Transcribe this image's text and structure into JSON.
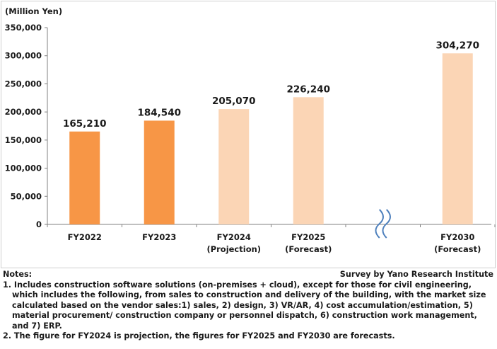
{
  "chart_data": {
    "type": "bar",
    "unit_label": "(Million Yen)",
    "categories": [
      [
        "FY2022"
      ],
      [
        "FY2023"
      ],
      [
        "FY2024",
        "(Projection)"
      ],
      [
        "FY2025",
        "(Forecast)"
      ],
      [
        "FY2030",
        "(Forecast)"
      ]
    ],
    "values": [
      165210,
      184540,
      205070,
      226240,
      304270
    ],
    "value_labels": [
      "165,210",
      "184,540",
      "205,070",
      "226,240",
      "304,270"
    ],
    "bar_colors": [
      "#f79646",
      "#f79646",
      "#fbd5b5",
      "#fbd5b5",
      "#fbd5b5"
    ],
    "ylim": [
      0,
      350000
    ],
    "yticks": [
      "0",
      "50,000",
      "100,000",
      "150,000",
      "200,000",
      "250,000",
      "300,000",
      "350,000"
    ],
    "axis_break_between": [
      3,
      4
    ],
    "break_color": "#4f81bd",
    "grid": false
  },
  "notes": {
    "title": "Notes:",
    "source": "Survey by Yano Research Institute",
    "items": [
      "1. Includes construction software solutions (on-premises + cloud), except for those for civil engineering, which includes the following, from sales to construction and delivery of the building, with the market size calculated based on the vendor sales:1) sales, 2) design, 3) VR/AR, 4) cost accumulation/estimation, 5) material procurement/ construction company or personnel dispatch, 6) construction work management, and 7) ERP.",
      "2. The figure for FY2024 is projection, the figures for FY2025 and FY2030 are forecasts."
    ]
  }
}
